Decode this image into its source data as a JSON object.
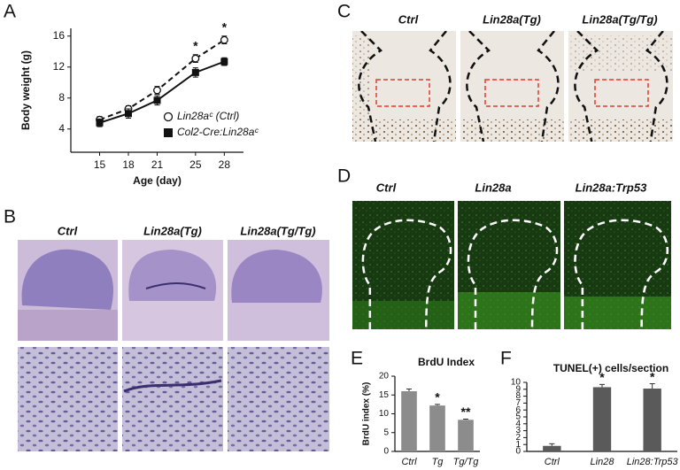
{
  "panel_labels": [
    "A",
    "B",
    "C",
    "D",
    "E",
    "F"
  ],
  "image_columns": {
    "B": [
      "Ctrl",
      "Lin28a(Tg)",
      "Lin28a(Tg/Tg)"
    ],
    "C": [
      "Ctrl",
      "Lin28a(Tg)",
      "Lin28a(Tg/Tg)"
    ],
    "D": [
      "Ctrl",
      "Lin28a",
      "Lin28a:Trp53"
    ]
  },
  "chart_data": [
    {
      "type": "line",
      "x_label": "Age (day)",
      "y_label": "Body weight (g)",
      "x": [
        15,
        18,
        21,
        25,
        28
      ],
      "xlim": [
        12,
        30
      ],
      "xticks": [
        15,
        18,
        21,
        25,
        28
      ],
      "ylim": [
        1,
        17
      ],
      "yticks": [
        4,
        8,
        12,
        16
      ],
      "legend": "lower right",
      "series": [
        {
          "name": "Lin28aᶜ (Ctrl)",
          "color": "#111111",
          "line_style": "dashed",
          "marker": "circle-open",
          "values": [
            5.2,
            6.6,
            9.0,
            13.1,
            15.5
          ],
          "errors": [
            0.4,
            0.4,
            0.5,
            0.5,
            0.5
          ]
        },
        {
          "name": "Col2-Cre:Lin28aᶜ",
          "color": "#111111",
          "line_style": "solid",
          "marker": "square",
          "values": [
            4.8,
            6.0,
            7.7,
            11.3,
            12.7
          ],
          "errors": [
            0.5,
            0.6,
            0.6,
            0.6,
            0.5
          ]
        }
      ],
      "annotations": [
        {
          "x": 25,
          "text": "*"
        },
        {
          "x": 28,
          "text": "*"
        }
      ]
    },
    {
      "type": "bar",
      "title": "BrdU Index",
      "y_label": "BrdU index (%)",
      "categories": [
        "Ctrl",
        "Tg",
        "Tg/Tg"
      ],
      "values": [
        16.0,
        12.2,
        8.4
      ],
      "errors": [
        0.6,
        0.3,
        0.2
      ],
      "color": "#8c8c8c",
      "ylim": [
        0,
        20
      ],
      "yticks": [
        0,
        5,
        10,
        15,
        20
      ],
      "annotations": [
        {
          "category": "Tg",
          "text": "*"
        },
        {
          "category": "Tg/Tg",
          "text": "**"
        }
      ]
    },
    {
      "type": "bar",
      "title": "TUNEL(+) cells/section",
      "categories": [
        "Ctrl",
        "Lin28",
        "Lin28:Trp53"
      ],
      "values": [
        0.8,
        9.3,
        9.1
      ],
      "errors": [
        0.3,
        0.4,
        0.7
      ],
      "color": "#5a5a5a",
      "ylim": [
        0,
        10
      ],
      "yticks": [
        0,
        1,
        2,
        3,
        4,
        5,
        6,
        7,
        8,
        9,
        10
      ],
      "annotations": [
        {
          "category": "Lin28",
          "text": "*"
        },
        {
          "category": "Lin28:Trp53",
          "text": "*"
        }
      ]
    }
  ]
}
